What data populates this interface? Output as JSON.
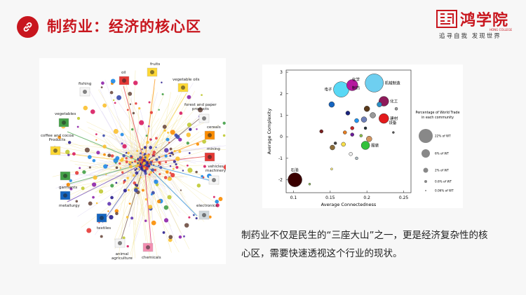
{
  "header": {
    "title": "制药业：经济的核心区",
    "logo_text": "鸿学院",
    "logo_en": "HONG COLLEGE",
    "logo_slogan": "追寻自我   发现世界"
  },
  "network": {
    "labels": {
      "oil": "oil",
      "fruits": "fruits",
      "fishing": "fishing",
      "vegetable_oils": "vegetable oils",
      "forest": "forest and paper\nproducts",
      "vegetables": "vegetables",
      "cereals": "cereals",
      "coffee": "coffee and cocoa\nProducts",
      "mining": "mining",
      "vehicles": "vehicles\nmachinery",
      "garments": "garments",
      "metallurgy": "metallurgy",
      "electronics": "electronics",
      "textiles": "textiles",
      "animal": "animal\nagriculture",
      "chemicals": "chemicals"
    }
  },
  "chart_data": {
    "type": "scatter",
    "xlabel": "Average Connectedness",
    "ylabel": "Average Complexity",
    "xlim": [
      0.09,
      0.26
    ],
    "ylim": [
      -2.6,
      3.1
    ],
    "xticks": [
      0.1,
      0.15,
      0.2,
      0.25
    ],
    "xtick_labels": [
      "0.1",
      "0.15",
      "0.2",
      "0.25"
    ],
    "yticks": [
      -2,
      -1,
      0,
      1,
      2,
      3
    ],
    "grid": false,
    "legend_title": "Percentage of World Trade\nin each community",
    "legend": [
      {
        "label": "22% of WT",
        "r": 10
      },
      {
        "label": "6% of WT",
        "r": 6
      },
      {
        "label": "2% of WT",
        "r": 3.5
      },
      {
        "label": "0.6% of WT",
        "r": 2
      },
      {
        "label": "0.06% of WT",
        "r": 1
      }
    ],
    "points": [
      {
        "x": 0.21,
        "y": 2.5,
        "size": 13,
        "color": "#6ecff0",
        "label": "机械制造"
      },
      {
        "x": 0.165,
        "y": 2.2,
        "size": 11,
        "color": "#59d8f5",
        "label": "电子"
      },
      {
        "x": 0.18,
        "y": 2.4,
        "size": 8,
        "color": "#b5179e",
        "label": ""
      },
      {
        "x": 0.223,
        "y": 1.65,
        "size": 7,
        "color": "#8e1a5a",
        "label": "化工"
      },
      {
        "x": 0.217,
        "y": 1.5,
        "size": 3.5,
        "color": "#2a8ec4",
        "label": ""
      },
      {
        "x": 0.223,
        "y": 0.85,
        "size": 7,
        "color": "#e31a1c",
        "label": "建材"
      },
      {
        "x": 0.102,
        "y": -2.0,
        "size": 10,
        "color": "#3a0000",
        "label": "石油"
      },
      {
        "x": 0.198,
        "y": -0.4,
        "size": 6,
        "color": "#33c13c",
        "label": "服装"
      },
      {
        "x": 0.152,
        "y": 1.5,
        "size": 4,
        "color": "#1565c0",
        "label": ""
      },
      {
        "x": 0.2,
        "y": 1.3,
        "size": 4,
        "color": "#5a3a1a",
        "label": ""
      },
      {
        "x": 0.208,
        "y": 1.0,
        "size": 4,
        "color": "#999",
        "label": ""
      },
      {
        "x": 0.196,
        "y": 0.8,
        "size": 4,
        "color": "#6d7fb8",
        "label": ""
      },
      {
        "x": 0.203,
        "y": -0.1,
        "size": 4,
        "color": "#d19560",
        "label": ""
      },
      {
        "x": 0.174,
        "y": 1.1,
        "size": 3,
        "color": "#1a237e",
        "label": ""
      },
      {
        "x": 0.186,
        "y": 0.75,
        "size": 3,
        "color": "#2196f3",
        "label": ""
      },
      {
        "x": 0.18,
        "y": 0.4,
        "size": 2.5,
        "color": "#c62828",
        "label": ""
      },
      {
        "x": 0.18,
        "y": 0.1,
        "size": 2.5,
        "color": "#6a1b9a",
        "label": ""
      },
      {
        "x": 0.17,
        "y": 0.2,
        "size": 2.5,
        "color": "#e67e22",
        "label": ""
      },
      {
        "x": 0.138,
        "y": 0.25,
        "size": 2.5,
        "color": "#7b1f1f",
        "label": ""
      },
      {
        "x": 0.153,
        "y": -0.5,
        "size": 3.5,
        "color": "#8c6d3a",
        "label": ""
      },
      {
        "x": 0.168,
        "y": -0.35,
        "size": 3,
        "color": "#f9e04b",
        "label": ""
      },
      {
        "x": 0.157,
        "y": -0.3,
        "size": 2,
        "color": "#444",
        "label": ""
      },
      {
        "x": 0.178,
        "y": -0.8,
        "size": 2.5,
        "color": "#eeeeee",
        "label": ""
      },
      {
        "x": 0.186,
        "y": -1.0,
        "size": 2,
        "color": "#b0bec5",
        "label": ""
      },
      {
        "x": 0.152,
        "y": -1.5,
        "size": 1.5,
        "color": "#fff176",
        "label": ""
      },
      {
        "x": 0.198,
        "y": 0.4,
        "size": 2,
        "color": "#263238",
        "label": ""
      },
      {
        "x": 0.192,
        "y": 0.05,
        "size": 2,
        "color": "#8bc34a",
        "label": ""
      },
      {
        "x": 0.122,
        "y": -2.2,
        "size": 1.5,
        "color": "#9ccc65",
        "label": ""
      },
      {
        "x": 0.24,
        "y": 1.3,
        "size": 2,
        "color": "#9e9e9e",
        "label": ""
      },
      {
        "x": 0.236,
        "y": 0.2,
        "size": 1.5,
        "color": "#555",
        "label": ""
      }
    ],
    "extra_labels": [
      {
        "x": 0.176,
        "y": 2.6,
        "text": "化学"
      },
      {
        "x": 0.176,
        "y": 2.2,
        "text": "制药"
      },
      {
        "x": 0.226,
        "y": 0.6,
        "text": "设备"
      }
    ]
  },
  "caption": "制药业不仅是民生的“三座大山”之一，更是经济复杂性的核心区，需要快速透视这个行业的现状。"
}
